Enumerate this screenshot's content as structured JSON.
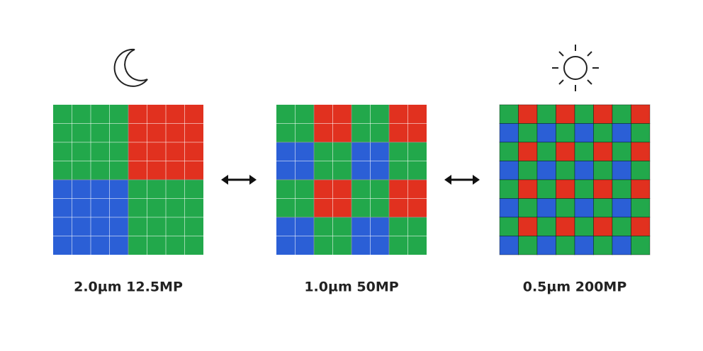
{
  "labels": [
    "2.0µm 12.5MP",
    "1.0µm 50MP",
    "0.5µm 200MP"
  ]
}
